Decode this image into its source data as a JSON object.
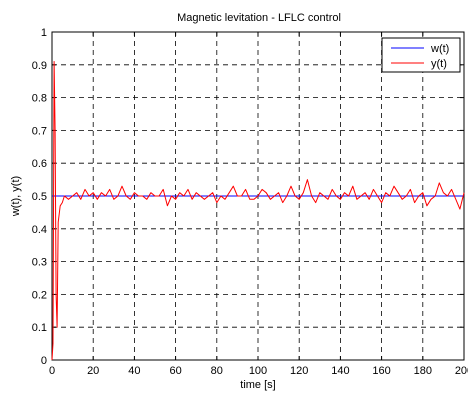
{
  "chart_data": {
    "type": "line",
    "title": "Magnetic levitation - LFLC control",
    "xlabel": "time [s]",
    "ylabel": "w(t), y(t)",
    "xlim": [
      0,
      200
    ],
    "ylim": [
      0,
      1
    ],
    "xticks": [
      0,
      20,
      40,
      60,
      80,
      100,
      120,
      140,
      160,
      180,
      200
    ],
    "yticks": [
      0,
      0.1,
      0.2,
      0.3,
      0.4,
      0.5,
      0.6,
      0.7,
      0.8,
      0.9,
      1
    ],
    "xtick_labels": [
      "0",
      "20",
      "40",
      "60",
      "80",
      "100",
      "120",
      "140",
      "160",
      "180",
      "200"
    ],
    "ytick_labels": [
      "0",
      "0.1",
      "0.2",
      "0.3",
      "0.4",
      "0.5",
      "0.6",
      "0.7",
      "0.8",
      "0.9",
      "1"
    ],
    "grid": true,
    "legend_position": "top-right",
    "series": [
      {
        "name": "w(t)",
        "color": "#0000ff",
        "x": [
          0,
          200
        ],
        "y": [
          0.5,
          0.5
        ]
      },
      {
        "name": "y(t)",
        "color": "#ff0000",
        "x": [
          0,
          0.5,
          1,
          1.5,
          2,
          2.5,
          3,
          4,
          5,
          6,
          8,
          10,
          12,
          14,
          16,
          18,
          20,
          22,
          24,
          26,
          28,
          30,
          32,
          34,
          36,
          38,
          40,
          42,
          44,
          46,
          48,
          50,
          52,
          54,
          56,
          58,
          60,
          62,
          64,
          66,
          68,
          70,
          72,
          74,
          76,
          78,
          80,
          82,
          84,
          86,
          88,
          90,
          92,
          94,
          96,
          98,
          100,
          102,
          104,
          106,
          108,
          110,
          112,
          114,
          116,
          118,
          120,
          122,
          124,
          126,
          128,
          130,
          132,
          134,
          136,
          138,
          140,
          142,
          144,
          146,
          148,
          150,
          152,
          154,
          156,
          158,
          160,
          162,
          164,
          166,
          168,
          170,
          172,
          174,
          176,
          178,
          180,
          182,
          184,
          186,
          188,
          190,
          192,
          194,
          196,
          198,
          200
        ],
        "y": [
          0.0,
          0.05,
          0.91,
          0.7,
          0.2,
          0.1,
          0.42,
          0.47,
          0.48,
          0.5,
          0.49,
          0.5,
          0.51,
          0.49,
          0.52,
          0.5,
          0.51,
          0.49,
          0.51,
          0.5,
          0.52,
          0.49,
          0.5,
          0.53,
          0.5,
          0.49,
          0.51,
          0.5,
          0.5,
          0.49,
          0.51,
          0.5,
          0.5,
          0.52,
          0.47,
          0.5,
          0.49,
          0.51,
          0.5,
          0.52,
          0.49,
          0.51,
          0.5,
          0.49,
          0.5,
          0.51,
          0.48,
          0.5,
          0.49,
          0.51,
          0.53,
          0.5,
          0.5,
          0.52,
          0.49,
          0.49,
          0.5,
          0.52,
          0.51,
          0.49,
          0.5,
          0.51,
          0.48,
          0.5,
          0.53,
          0.5,
          0.49,
          0.51,
          0.55,
          0.5,
          0.48,
          0.51,
          0.5,
          0.49,
          0.52,
          0.5,
          0.49,
          0.51,
          0.5,
          0.53,
          0.49,
          0.5,
          0.51,
          0.49,
          0.52,
          0.5,
          0.48,
          0.51,
          0.5,
          0.53,
          0.51,
          0.49,
          0.5,
          0.52,
          0.48,
          0.5,
          0.51,
          0.47,
          0.49,
          0.5,
          0.54,
          0.51,
          0.5,
          0.52,
          0.49,
          0.46,
          0.51
        ]
      }
    ]
  }
}
